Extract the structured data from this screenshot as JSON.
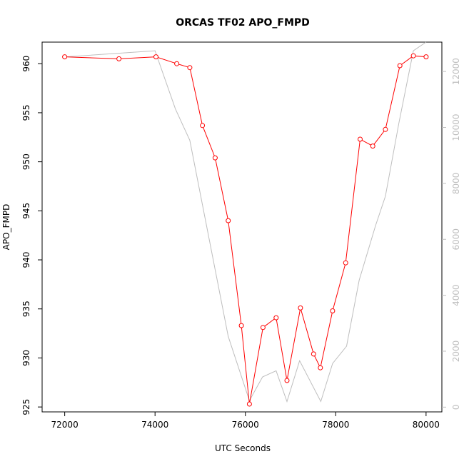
{
  "chart_data": {
    "type": "line",
    "title": "ORCAS TF02 APO_FMPD",
    "xlabel": "UTC Seconds",
    "ylabel": "APO_FMPD",
    "xlim": [
      71500,
      80350
    ],
    "ylim": [
      924.5,
      962.2
    ],
    "y2lim": [
      -170,
      13050
    ],
    "x_ticks": [
      72000,
      74000,
      76000,
      78000,
      80000
    ],
    "y_ticks": [
      925,
      930,
      935,
      940,
      945,
      950,
      955,
      960
    ],
    "y2_ticks": [
      0,
      2000,
      4000,
      6000,
      8000,
      10000,
      12000
    ],
    "grid": false,
    "series": [
      {
        "axis": "left",
        "color": "#ff0000",
        "marker": "circle-open",
        "points": [
          [
            72000,
            960.7
          ],
          [
            73200,
            960.5
          ],
          [
            74020,
            960.7
          ],
          [
            74480,
            960.0
          ],
          [
            74770,
            959.6
          ],
          [
            75050,
            953.7
          ],
          [
            75330,
            950.4
          ],
          [
            75620,
            944.0
          ],
          [
            75910,
            933.3
          ],
          [
            76090,
            925.3
          ],
          [
            76390,
            933.1
          ],
          [
            76680,
            934.1
          ],
          [
            76920,
            927.7
          ],
          [
            77220,
            935.1
          ],
          [
            77510,
            930.4
          ],
          [
            77660,
            929.0
          ],
          [
            77930,
            934.8
          ],
          [
            78220,
            939.7
          ],
          [
            78540,
            952.3
          ],
          [
            78820,
            951.6
          ],
          [
            79100,
            953.3
          ],
          [
            79420,
            959.8
          ],
          [
            79720,
            960.8
          ],
          [
            80000,
            960.7
          ]
        ]
      },
      {
        "axis": "right",
        "color": "#bebebe",
        "marker": "none",
        "points": [
          [
            72000,
            12520
          ],
          [
            74000,
            12740
          ],
          [
            74450,
            10660
          ],
          [
            74770,
            9540
          ],
          [
            75620,
            2530
          ],
          [
            76090,
            230
          ],
          [
            76380,
            1080
          ],
          [
            76680,
            1300
          ],
          [
            76920,
            200
          ],
          [
            77200,
            1660
          ],
          [
            77670,
            200
          ],
          [
            77930,
            1560
          ],
          [
            78240,
            2180
          ],
          [
            78520,
            4540
          ],
          [
            78880,
            6480
          ],
          [
            79100,
            7540
          ],
          [
            79400,
            10170
          ],
          [
            79720,
            12740
          ],
          [
            80000,
            13050
          ]
        ]
      }
    ]
  }
}
